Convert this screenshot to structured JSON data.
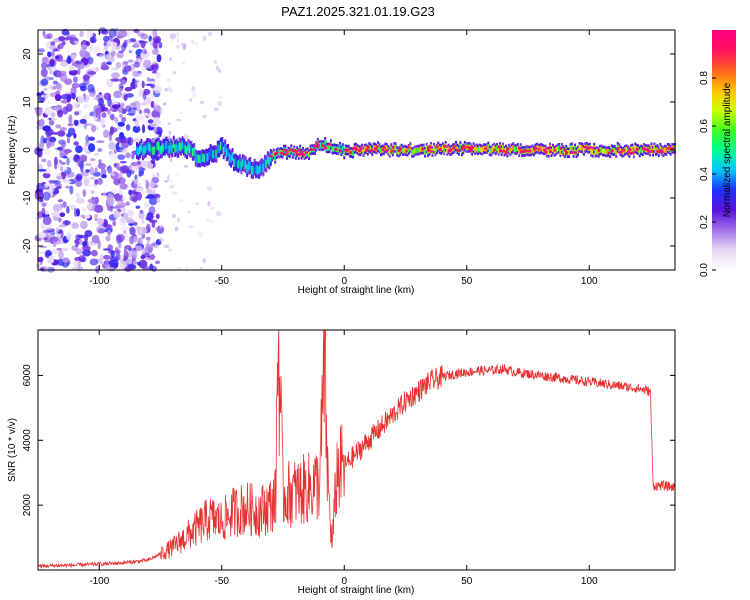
{
  "title": "PAZ1.2025.321.01.19.G23",
  "chart_data": [
    {
      "type": "heatmap",
      "name": "spectrogram",
      "xlabel": "Height of straight line (km)",
      "ylabel": "Frequency (Hz)",
      "xlim": [
        -125,
        135
      ],
      "ylim": [
        -25,
        25
      ],
      "xticks": [
        -100,
        -50,
        0,
        50,
        100
      ],
      "yticks": [
        -20,
        -10,
        0,
        10,
        20
      ],
      "colorbar": {
        "label": "Normalized spectral amplitude",
        "range": [
          0,
          1
        ],
        "ticks": [
          0.0,
          0.2,
          0.4,
          0.6,
          0.8
        ],
        "colors": [
          "#ffffff",
          "#e6d8f5",
          "#a070e8",
          "#5a10e0",
          "#2030ff",
          "#00c8ff",
          "#00ff90",
          "#40ff20",
          "#d0ff00",
          "#ffc000",
          "#ff6020",
          "#ff1060",
          "#ff0080"
        ]
      },
      "ridge": [
        [
          -85,
          0
        ],
        [
          -80,
          0.2
        ],
        [
          -75,
          0.5
        ],
        [
          -70,
          0.8
        ],
        [
          -65,
          0.5
        ],
        [
          -60,
          -1.5
        ],
        [
          -55,
          -1
        ],
        [
          -50,
          0.5
        ],
        [
          -45,
          -2.5
        ],
        [
          -40,
          -3.5
        ],
        [
          -35,
          -4.5
        ],
        [
          -30,
          -1.5
        ],
        [
          -25,
          -0.5
        ],
        [
          -20,
          -0.5
        ],
        [
          -15,
          -0.5
        ],
        [
          -10,
          1.5
        ],
        [
          -5,
          0.5
        ],
        [
          0,
          -0.3
        ],
        [
          10,
          0.2
        ],
        [
          20,
          0
        ],
        [
          30,
          0
        ],
        [
          40,
          0.3
        ],
        [
          50,
          0.3
        ],
        [
          60,
          0.2
        ],
        [
          70,
          0.1
        ],
        [
          80,
          0
        ],
        [
          90,
          0
        ],
        [
          100,
          0
        ],
        [
          110,
          0
        ],
        [
          120,
          0
        ],
        [
          135,
          0
        ]
      ]
    },
    {
      "type": "line",
      "name": "snr",
      "xlabel": "Height of straight line (km)",
      "ylabel": "SNR (10 * v/v)",
      "xlim": [
        -125,
        135
      ],
      "ylim": [
        0,
        7400
      ],
      "xticks": [
        -100,
        -50,
        0,
        50,
        100
      ],
      "yticks": [
        2000,
        4000,
        6000
      ],
      "color": "#e83030",
      "series": [
        {
          "name": "SNR",
          "x": [
            -125,
            -110,
            -100,
            -90,
            -80,
            -75,
            -70,
            -65,
            -60,
            -55,
            -50,
            -45,
            -40,
            -35,
            -30,
            -28,
            -27,
            -25,
            -20,
            -15,
            -10,
            -8,
            -7,
            -5,
            -3,
            0,
            5,
            10,
            15,
            20,
            25,
            30,
            35,
            40,
            45,
            50,
            55,
            60,
            65,
            70,
            75,
            80,
            85,
            90,
            95,
            100,
            105,
            110,
            115,
            120,
            125,
            126,
            130,
            135
          ],
          "y": [
            120,
            150,
            180,
            220,
            300,
            500,
            700,
            1000,
            1300,
            1600,
            1500,
            1800,
            1900,
            1800,
            2000,
            2200,
            7400,
            2300,
            2400,
            2500,
            2700,
            6500,
            3200,
            700,
            3000,
            3200,
            3600,
            4000,
            4400,
            4800,
            5200,
            5500,
            5800,
            5950,
            6050,
            6100,
            6150,
            6150,
            6200,
            6100,
            6050,
            6000,
            5950,
            5900,
            5850,
            5800,
            5750,
            5700,
            5650,
            5600,
            5500,
            2600,
            2600,
            2550
          ]
        }
      ]
    }
  ]
}
